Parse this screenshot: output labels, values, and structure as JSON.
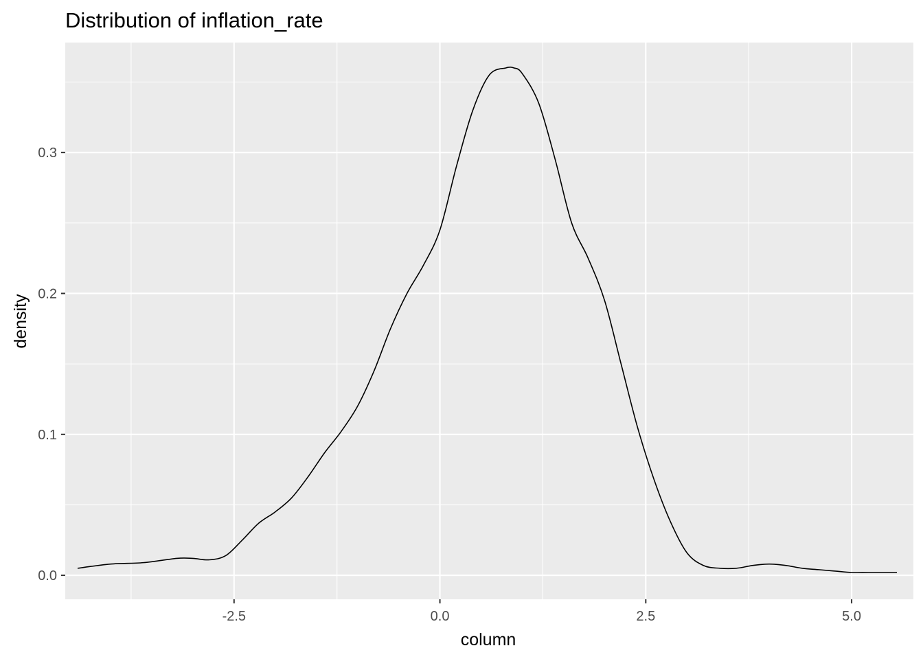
{
  "chart_data": {
    "type": "line",
    "title": "Distribution of inflation_rate",
    "xlabel": "column",
    "ylabel": "density",
    "xlim": [
      -4.55,
      5.75
    ],
    "ylim": [
      -0.017,
      0.378
    ],
    "x_ticks": [
      -2.5,
      0.0,
      2.5,
      5.0
    ],
    "x_tick_labels": [
      "-2.5",
      "0.0",
      "2.5",
      "5.0"
    ],
    "x_minor": [
      -3.75,
      -1.25,
      1.25,
      3.75
    ],
    "y_ticks": [
      0.0,
      0.1,
      0.2,
      0.3
    ],
    "y_tick_labels": [
      "0.0",
      "0.1",
      "0.2",
      "0.3"
    ],
    "y_minor": [
      0.05,
      0.15,
      0.25,
      0.35
    ],
    "grid": true,
    "background": "#ebebeb",
    "line_color": "#000000",
    "series": [
      {
        "x": [
          -4.4,
          -4.0,
          -3.6,
          -3.2,
          -3.0,
          -2.8,
          -2.6,
          -2.4,
          -2.2,
          -2.0,
          -1.8,
          -1.6,
          -1.4,
          -1.2,
          -1.0,
          -0.8,
          -0.6,
          -0.4,
          -0.2,
          0.0,
          0.2,
          0.4,
          0.6,
          0.8,
          0.9,
          1.0,
          1.2,
          1.4,
          1.6,
          1.8,
          2.0,
          2.2,
          2.4,
          2.6,
          2.8,
          3.0,
          3.2,
          3.4,
          3.6,
          3.8,
          4.0,
          4.2,
          4.4,
          4.6,
          4.8,
          5.0,
          5.2,
          5.4,
          5.55
        ],
        "y": [
          0.005,
          0.008,
          0.009,
          0.012,
          0.012,
          0.011,
          0.014,
          0.025,
          0.037,
          0.045,
          0.055,
          0.07,
          0.087,
          0.102,
          0.12,
          0.145,
          0.175,
          0.2,
          0.22,
          0.245,
          0.29,
          0.33,
          0.355,
          0.36,
          0.36,
          0.356,
          0.335,
          0.295,
          0.25,
          0.225,
          0.195,
          0.15,
          0.105,
          0.068,
          0.038,
          0.016,
          0.007,
          0.005,
          0.005,
          0.007,
          0.008,
          0.007,
          0.005,
          0.004,
          0.003,
          0.002,
          0.002,
          0.002,
          0.002
        ]
      }
    ]
  }
}
